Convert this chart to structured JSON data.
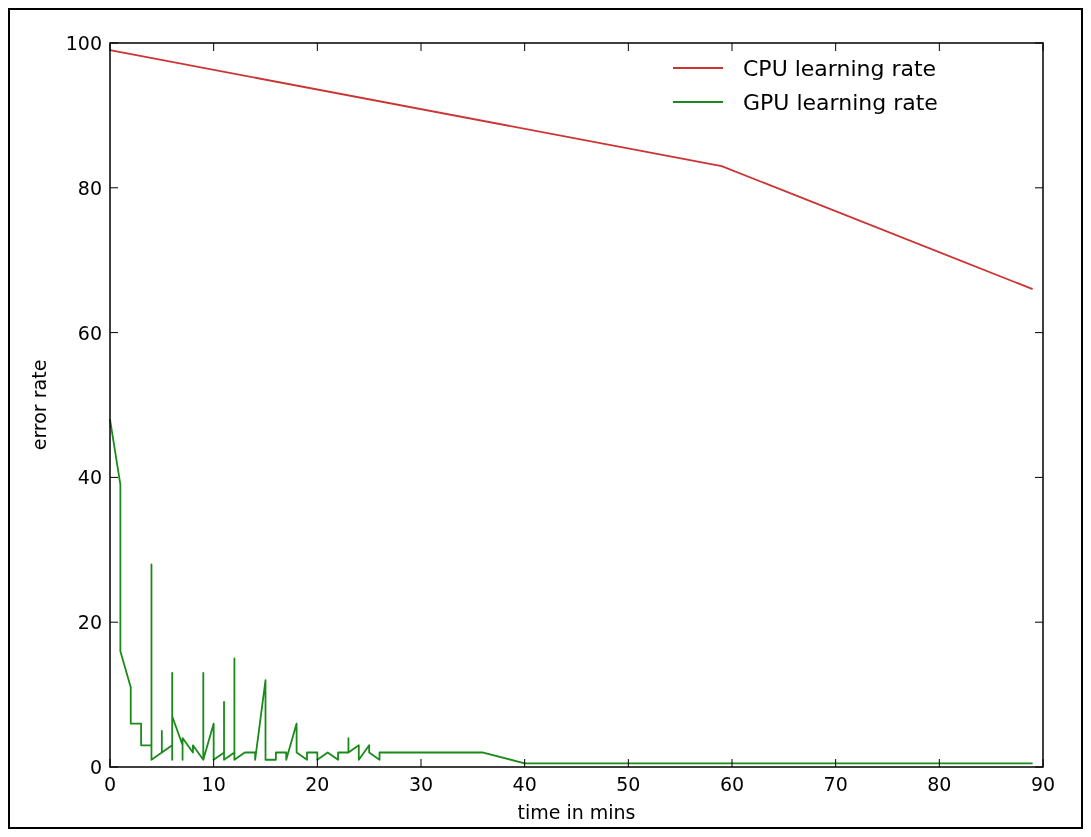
{
  "chart_data": {
    "type": "line",
    "xlabel": "time in mins",
    "ylabel": "error rate",
    "xlim": [
      0,
      90
    ],
    "ylim": [
      0,
      100
    ],
    "xticks": [
      0,
      10,
      20,
      30,
      40,
      50,
      60,
      70,
      80,
      90
    ],
    "yticks": [
      0,
      20,
      40,
      60,
      80,
      100
    ],
    "grid": false,
    "legend": "top right",
    "series": [
      {
        "name": "CPU learning rate",
        "color": "#cc3333",
        "x": [
          0,
          59,
          89
        ],
        "values": [
          99,
          83,
          66
        ]
      },
      {
        "name": "GPU learning rate",
        "color": "#1a8a1a",
        "x": [
          0,
          1,
          1,
          1,
          1,
          2,
          2,
          3,
          3,
          4,
          4,
          4,
          5,
          5,
          5,
          6,
          6,
          6,
          6,
          7,
          7,
          7,
          8,
          8,
          9,
          9,
          9,
          10,
          10,
          11,
          11,
          11,
          12,
          12,
          12,
          13,
          14,
          14,
          15,
          15,
          16,
          16,
          17,
          17,
          18,
          18,
          19,
          19,
          20,
          20,
          21,
          22,
          22,
          23,
          23,
          23,
          24,
          24,
          25,
          25,
          26,
          26,
          36,
          40,
          89
        ],
        "values": [
          48,
          39,
          32,
          24,
          16,
          11,
          6,
          6,
          3,
          3,
          28,
          1,
          2,
          5,
          2,
          3,
          13,
          1,
          7,
          3,
          1,
          4,
          2,
          3,
          1,
          13,
          1,
          6,
          1,
          2,
          9,
          1,
          2,
          15,
          1,
          2,
          2,
          1,
          12,
          1,
          1,
          2,
          2,
          1,
          6,
          2,
          1,
          2,
          2,
          1,
          2,
          1,
          2,
          2,
          4,
          2,
          3,
          1,
          3,
          2,
          1,
          2,
          2,
          0.5,
          0.5
        ]
      }
    ]
  }
}
